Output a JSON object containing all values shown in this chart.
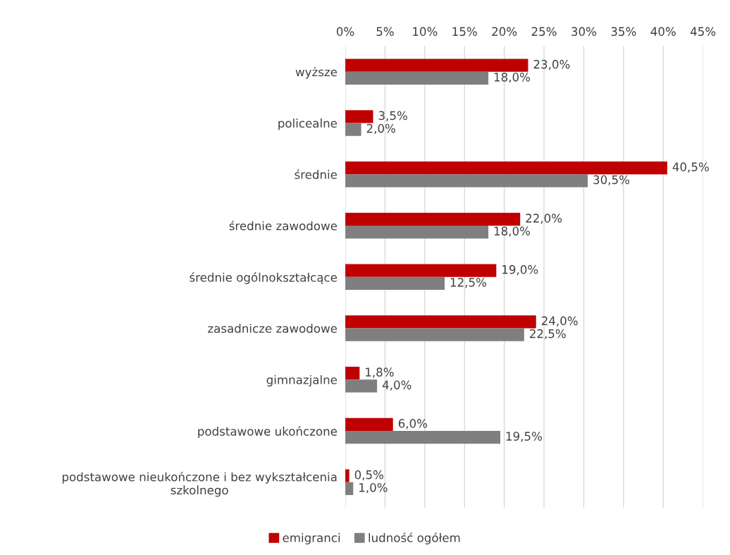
{
  "chart_data": {
    "type": "bar",
    "orientation": "horizontal",
    "categories": [
      "wyższe",
      "policealne",
      "średnie",
      "średnie zawodowe",
      "średnie ogólnokształcące",
      "zasadnicze zawodowe",
      "gimnazjalne",
      "podstawowe ukończone",
      "podstawowe nieukończone i bez wykształcenia\nszkolnego"
    ],
    "series": [
      {
        "name": "emigranci",
        "color": "#c00000",
        "values": [
          23.0,
          3.5,
          40.5,
          22.0,
          19.0,
          24.0,
          1.8,
          6.0,
          0.5
        ],
        "value_labels": [
          "23,0%",
          "3,5%",
          "40,5%",
          "22,0%",
          "19,0%",
          "24,0%",
          "1,8%",
          "6,0%",
          "0,5%"
        ]
      },
      {
        "name": "ludność ogółem",
        "color": "#7f7f7f",
        "values": [
          18.0,
          2.0,
          30.5,
          18.0,
          12.5,
          22.5,
          4.0,
          19.5,
          1.0
        ],
        "value_labels": [
          "18,0%",
          "2,0%",
          "30,5%",
          "18,0%",
          "12,5%",
          "22,5%",
          "4,0%",
          "19,5%",
          "1,0%"
        ]
      }
    ],
    "xlim": [
      0,
      45
    ],
    "xticks": [
      {
        "value": 0,
        "label": "0%"
      },
      {
        "value": 5,
        "label": "5%"
      },
      {
        "value": 10,
        "label": "10%"
      },
      {
        "value": 15,
        "label": "15%"
      },
      {
        "value": 20,
        "label": "20%"
      },
      {
        "value": 25,
        "label": "25%"
      },
      {
        "value": 30,
        "label": "30%"
      },
      {
        "value": 35,
        "label": "35%"
      },
      {
        "value": 40,
        "label": "40%"
      },
      {
        "value": 45,
        "label": "45%"
      }
    ],
    "grid": "x",
    "legend": "bottom"
  }
}
